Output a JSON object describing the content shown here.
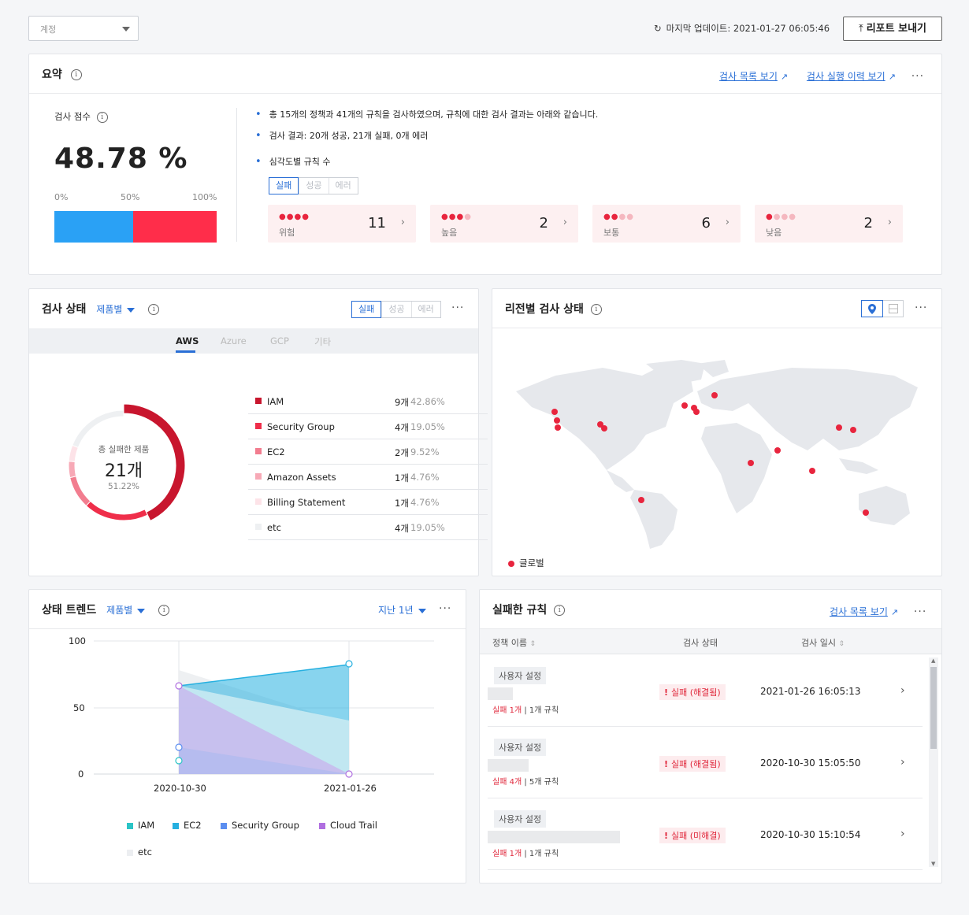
{
  "topbar": {
    "account_select": "계정",
    "last_update_label": "마지막 업데이트: 2021-01-27 06:05:46",
    "report_button": "리포트 보내기"
  },
  "summary": {
    "title": "요약",
    "link_list": "검사 목록 보기",
    "link_history": "검사 실행 이력 보기",
    "score_label": "검사 점수",
    "score_value": "48.78 %",
    "score_fraction": 0.4878,
    "bar_ticks": [
      "0%",
      "50%",
      "100%"
    ],
    "bullets": [
      "총 15개의 정책과 41개의 규칙을 검사하였으며, 규칙에 대한 검사 결과는 아래와 같습니다.",
      "검사 결과: 20개 성공, 21개 실패, 0개 에러",
      "심각도별 규칙 수"
    ],
    "tabs": [
      "실패",
      "성공",
      "에러"
    ],
    "severity": [
      {
        "label": "위험",
        "count": "11",
        "level": 4
      },
      {
        "label": "높음",
        "count": "2",
        "level": 3
      },
      {
        "label": "보통",
        "count": "6",
        "level": 2
      },
      {
        "label": "낮음",
        "count": "2",
        "level": 1
      }
    ],
    "colors": {
      "success": "#2aa1f5",
      "fail": "#ff2d4a"
    }
  },
  "check_status": {
    "title": "검사 상태",
    "group_by": "제품별",
    "tabs": [
      "실패",
      "성공",
      "에러"
    ],
    "providers": [
      "AWS",
      "Azure",
      "GCP",
      "기타"
    ],
    "donut_label": "총 실패한 제품",
    "donut_value": "21개",
    "donut_percent": "51.22%",
    "items": [
      {
        "name": "IAM",
        "count": "9개",
        "percent": "42.86%",
        "value": 9,
        "color": "#c8162e"
      },
      {
        "name": "Security Group",
        "count": "4개",
        "percent": "19.05%",
        "value": 4,
        "color": "#ef2e4a"
      },
      {
        "name": "EC2",
        "count": "2개",
        "percent": "9.52%",
        "value": 2,
        "color": "#f27d8f"
      },
      {
        "name": "Amazon Assets",
        "count": "1개",
        "percent": "4.76%",
        "value": 1,
        "color": "#f7a9b6"
      },
      {
        "name": "Billing Statement",
        "count": "1개",
        "percent": "4.76%",
        "value": 1,
        "color": "#fde3e8"
      },
      {
        "name": "etc",
        "count": "4개",
        "percent": "19.05%",
        "value": 4,
        "color": "#eef0f2"
      }
    ]
  },
  "region": {
    "title": "리전별 검사 상태",
    "legend": "글로벌"
  },
  "trend": {
    "title": "상태 트렌드",
    "group_by": "제품별",
    "period": "지난 1년",
    "y_ticks": [
      "100",
      "50",
      "0"
    ],
    "x_labels": [
      "2020-10-30",
      "2021-01-26"
    ],
    "legend": [
      {
        "name": "IAM",
        "color": "#2bc4c6"
      },
      {
        "name": "EC2",
        "color": "#26b0e0"
      },
      {
        "name": "Security Group",
        "color": "#5b8ef0"
      },
      {
        "name": "Cloud Trail",
        "color": "#b06fe0"
      },
      {
        "name": "etc",
        "color": "#eceef1"
      }
    ]
  },
  "failed_rules": {
    "title": "실패한 규칙",
    "link_list": "검사 목록 보기",
    "columns": [
      "정책 이름",
      "검사 상태",
      "검사 일시"
    ],
    "rows": [
      {
        "tag": "사용자 설정",
        "fail": "실패 1개",
        "rules": "| 1개 규칙",
        "status": "실패 (해결됨)",
        "date": "2021-01-26 16:05:13"
      },
      {
        "tag": "사용자 설정",
        "fail": "실패 4개",
        "rules": "| 5개 규칙",
        "status": "실패 (해결됨)",
        "date": "2020-10-30 15:05:50"
      },
      {
        "tag": "사용자 설정",
        "fail": "실패 1개",
        "rules": "| 1개 규칙",
        "status": "실패 (미해결)",
        "date": "2020-10-30 15:10:54"
      }
    ]
  }
}
